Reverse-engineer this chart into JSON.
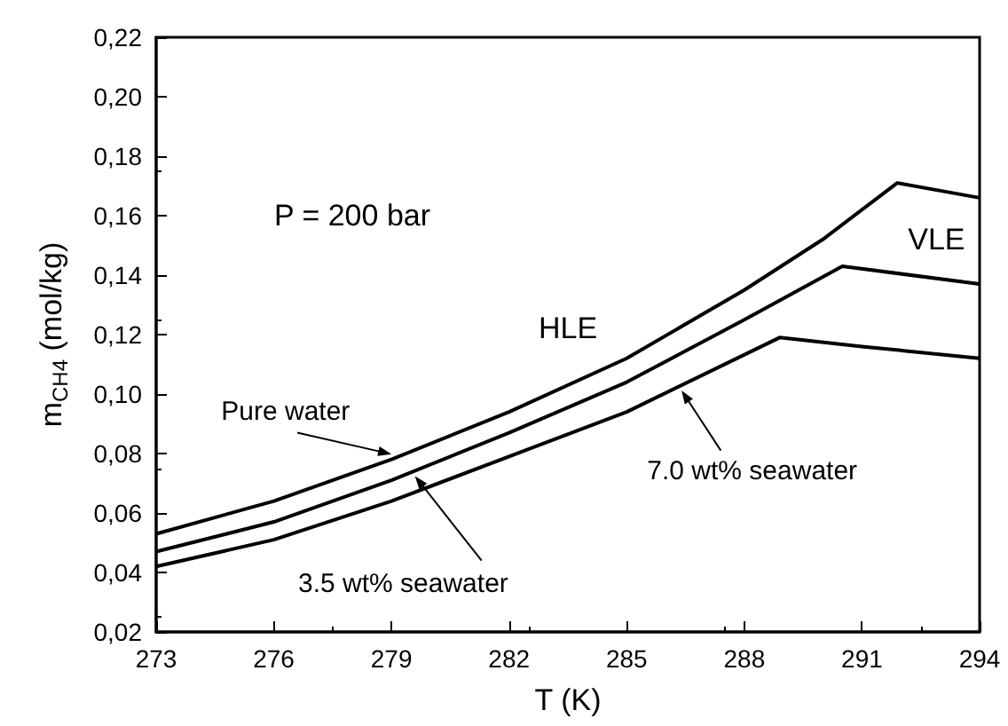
{
  "chart_data": {
    "type": "line",
    "xlabel": "T (K)",
    "ylabel": "m$_{CH4}$ (mol/kg)",
    "marker": "none",
    "line_style": "solid",
    "grid": false,
    "annotations": [
      "P = 200 bar",
      "HLE",
      "VLE"
    ],
    "xlim": [
      273,
      294
    ],
    "xticks": [
      273,
      276,
      279,
      282,
      285,
      288,
      291,
      294
    ],
    "ylim": [
      0.02,
      0.22
    ],
    "yticks": [
      {
        "value": 0.02,
        "label": "0,02"
      },
      {
        "value": 0.04,
        "label": "0,04"
      },
      {
        "value": 0.06,
        "label": "0,06"
      },
      {
        "value": 0.08,
        "label": "0,08"
      },
      {
        "value": 0.1,
        "label": "0,10"
      },
      {
        "value": 0.12,
        "label": "0,12"
      },
      {
        "value": 0.14,
        "label": "0,14"
      },
      {
        "value": 0.16,
        "label": "0,16"
      },
      {
        "value": 0.18,
        "label": "0,18"
      },
      {
        "value": 0.2,
        "label": "0,20"
      },
      {
        "value": 0.22,
        "label": "0,22"
      }
    ],
    "series": [
      {
        "name": "Pure water",
        "color": "#000000",
        "x": [
          273,
          276,
          279,
          282,
          285,
          288,
          290,
          291.9,
          294
        ],
        "values": [
          0.053,
          0.064,
          0.078,
          0.094,
          0.112,
          0.135,
          0.152,
          0.171,
          0.166
        ]
      },
      {
        "name": "3.5 wt% seawater",
        "color": "#000000",
        "x": [
          273,
          276,
          279,
          282,
          285,
          288,
          290.5,
          294
        ],
        "values": [
          0.047,
          0.057,
          0.071,
          0.087,
          0.104,
          0.125,
          0.143,
          0.137
        ]
      },
      {
        "name": "7.0 wt% seawater",
        "color": "#000000",
        "x": [
          273,
          276,
          279,
          282,
          285,
          288.9,
          291,
          294
        ],
        "values": [
          0.042,
          0.051,
          0.064,
          0.079,
          0.094,
          0.119,
          0.116,
          0.112
        ]
      }
    ]
  }
}
